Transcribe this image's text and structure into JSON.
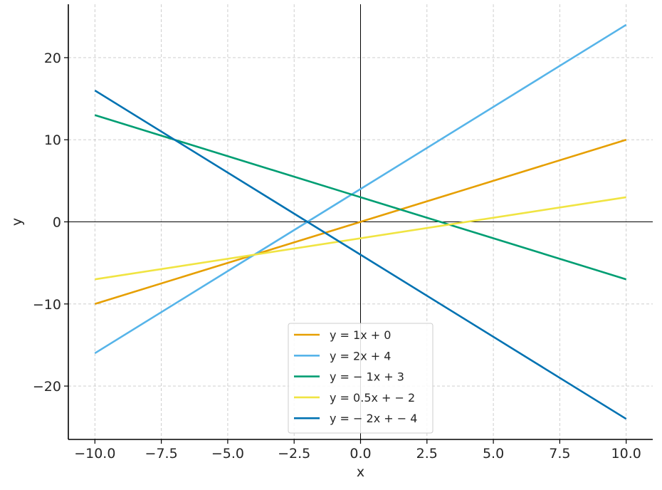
{
  "chart_data": {
    "type": "line",
    "title": "",
    "xlabel": "x",
    "ylabel": "y",
    "xlim": [
      -11,
      11
    ],
    "ylim": [
      -26.5,
      26.5
    ],
    "grid": true,
    "legend_position": "bottom-center",
    "x_ticks": [
      -10.0,
      -7.5,
      -5.0,
      -2.5,
      0.0,
      2.5,
      5.0,
      7.5,
      10.0
    ],
    "x_tick_labels": [
      "−10.0",
      "−7.5",
      "−5.0",
      "−2.5",
      "0.0",
      "2.5",
      "5.0",
      "7.5",
      "10.0"
    ],
    "y_ticks": [
      -20,
      -10,
      0,
      10,
      20
    ],
    "y_tick_labels": [
      "−20",
      "−10",
      "0",
      "10",
      "20"
    ],
    "x": [
      -10,
      10
    ],
    "series": [
      {
        "name": "y = 1x + 0",
        "slope": 1,
        "intercept": 0,
        "values": [
          -10,
          10
        ],
        "color": "#E69F00"
      },
      {
        "name": "y = 2x + 4",
        "slope": 2,
        "intercept": 4,
        "values": [
          -16,
          24
        ],
        "color": "#56B4E9"
      },
      {
        "name": "y = − 1x + 3",
        "slope": -1,
        "intercept": 3,
        "values": [
          13,
          -7
        ],
        "color": "#009E73"
      },
      {
        "name": "y = 0.5x + − 2",
        "slope": 0.5,
        "intercept": -2,
        "values": [
          -7,
          3
        ],
        "color": "#F0E442"
      },
      {
        "name": "y = − 2x + − 4",
        "slope": -2,
        "intercept": -4,
        "values": [
          16,
          -24
        ],
        "color": "#0072B2"
      }
    ]
  }
}
